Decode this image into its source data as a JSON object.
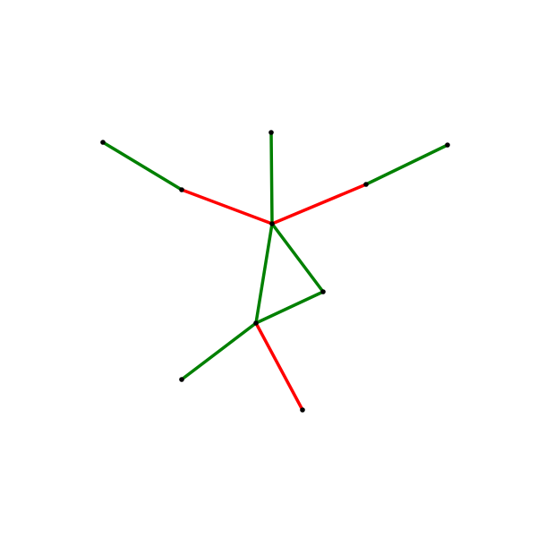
{
  "graph": {
    "colors": {
      "node": "#000000",
      "green": "#008000",
      "red": "#ff0000"
    },
    "nodes": [
      {
        "id": "center"
      },
      {
        "id": "top"
      },
      {
        "id": "upper-left-mid"
      },
      {
        "id": "upper-left-end"
      },
      {
        "id": "upper-right-mid"
      },
      {
        "id": "upper-right-end"
      },
      {
        "id": "triangle-right"
      },
      {
        "id": "lower-hub"
      },
      {
        "id": "lower-left-end"
      },
      {
        "id": "lower-right-end"
      }
    ],
    "edges": [
      {
        "from": "center",
        "to": "top",
        "color": "green"
      },
      {
        "from": "center",
        "to": "upper-left-mid",
        "color": "red"
      },
      {
        "from": "upper-left-mid",
        "to": "upper-left-end",
        "color": "green"
      },
      {
        "from": "center",
        "to": "upper-right-mid",
        "color": "red"
      },
      {
        "from": "upper-right-mid",
        "to": "upper-right-end",
        "color": "green"
      },
      {
        "from": "center",
        "to": "triangle-right",
        "color": "green"
      },
      {
        "from": "center",
        "to": "lower-hub",
        "color": "green"
      },
      {
        "from": "triangle-right",
        "to": "lower-hub",
        "color": "green"
      },
      {
        "from": "lower-hub",
        "to": "lower-left-end",
        "color": "green"
      },
      {
        "from": "lower-hub",
        "to": "lower-right-end",
        "color": "red"
      }
    ]
  }
}
